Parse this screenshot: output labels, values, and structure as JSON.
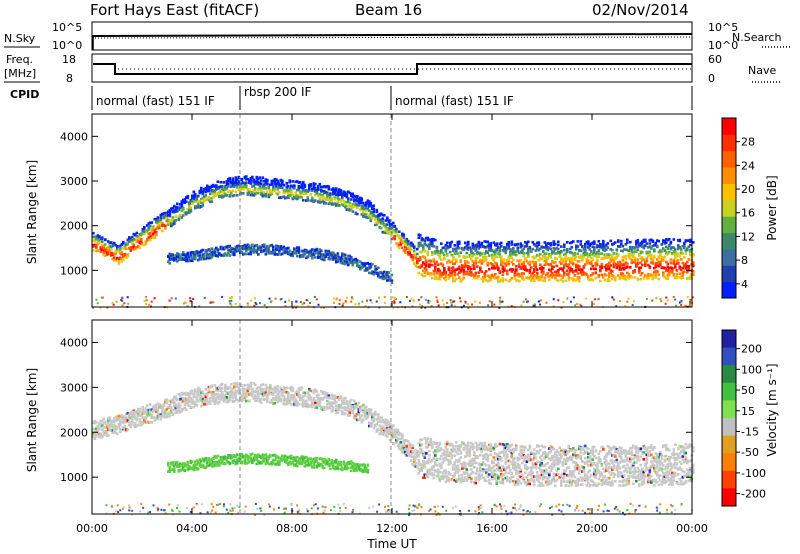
{
  "header": {
    "station": "Fort Hays East (fitACF)",
    "beam": "Beam 16",
    "date": "02/Nov/2014"
  },
  "strip_panel": {
    "left_label_top": "N.Sky",
    "left_ticks_top": [
      "10^5",
      "10^0"
    ],
    "right_label_top": "N.Search",
    "right_ticks_top": [
      "10^5",
      "10^0"
    ],
    "left_label_mid_line1": "Freq.",
    "left_label_mid_line2": "[MHz]",
    "left_ticks_mid": [
      "18",
      "8"
    ],
    "right_label_mid": "Nave",
    "right_ticks_mid": [
      "60",
      "0"
    ],
    "cpid_label": "CPID",
    "cpid_segments": [
      "normal (fast) 151 IF",
      "rbsp 200 IF",
      "normal (fast) 151 IF"
    ]
  },
  "x_axis": {
    "label": "Time UT",
    "ticks": [
      "00:00",
      "04:00",
      "08:00",
      "12:00",
      "16:00",
      "20:00",
      "00:00"
    ]
  },
  "chart_data": [
    {
      "type": "heatmap",
      "panel": "power",
      "ylabel": "Slant Range [km]",
      "y_ticks": [
        "1000",
        "2000",
        "3000",
        "4000"
      ],
      "ylim": [
        180,
        4500
      ],
      "xlim_hours": [
        0,
        24
      ],
      "colorbar_label": "Power [dB]",
      "colorbar_ticks": [
        "4",
        "8",
        "12",
        "16",
        "20",
        "24",
        "28"
      ],
      "colors": [
        "#0020ff",
        "#2040b0",
        "#3a6fa0",
        "#3a8a6a",
        "#60b040",
        "#c8d020",
        "#ffc000",
        "#ff9000",
        "#ff6000",
        "#ff3000",
        "#ff0000"
      ],
      "features": [
        {
          "band": "main echo",
          "t_hours": [
            0,
            1,
            2,
            3,
            4,
            5,
            6,
            7,
            8,
            9,
            10,
            11,
            12,
            13,
            14,
            16,
            18,
            20,
            22,
            24
          ],
          "range_km": [
            1600,
            1300,
            1700,
            2100,
            2500,
            2750,
            2850,
            2800,
            2750,
            2680,
            2550,
            2300,
            1800,
            1200,
            1050,
            1050,
            1050,
            1050,
            1100,
            1100
          ]
        },
        {
          "band": "lower echo",
          "t_hours": [
            3,
            4,
            5,
            6,
            7,
            8,
            9,
            10,
            11,
            12
          ],
          "range_km": [
            1250,
            1300,
            1400,
            1450,
            1450,
            1400,
            1350,
            1250,
            1050,
            800
          ]
        }
      ]
    },
    {
      "type": "heatmap",
      "panel": "velocity",
      "ylabel": "Slant Range [km]",
      "y_ticks": [
        "1000",
        "2000",
        "3000",
        "4000"
      ],
      "ylim": [
        180,
        4500
      ],
      "xlim_hours": [
        0,
        24
      ],
      "colorbar_label": "Velocity [m s⁻¹]",
      "colorbar_ticks": [
        "200",
        "100",
        "50",
        "15",
        "-15",
        "-50",
        "-100",
        "-200"
      ],
      "colors": [
        "#2020a0",
        "#3050c0",
        "#2a8a40",
        "#40c040",
        "#80e050",
        "#c0c0c0",
        "#e0a020",
        "#ff8000",
        "#ff4000",
        "#ff0000"
      ],
      "features": [
        {
          "band": "ground scatter",
          "t_hours": [
            0,
            1,
            2,
            3,
            4,
            5,
            6,
            7,
            8,
            9,
            10,
            11,
            12,
            13,
            14,
            16,
            18,
            20,
            22,
            24
          ],
          "range_km": [
            2000,
            2100,
            2300,
            2500,
            2700,
            2800,
            2850,
            2800,
            2750,
            2680,
            2550,
            2300,
            1900,
            1300,
            1200,
            1150,
            1100,
            1100,
            1100,
            1150
          ]
        },
        {
          "band": "green echo",
          "t_hours": [
            3,
            4,
            5,
            6,
            7,
            8,
            9,
            10,
            11
          ],
          "range_km": [
            1200,
            1250,
            1350,
            1400,
            1380,
            1350,
            1300,
            1250,
            1200
          ]
        }
      ]
    }
  ]
}
